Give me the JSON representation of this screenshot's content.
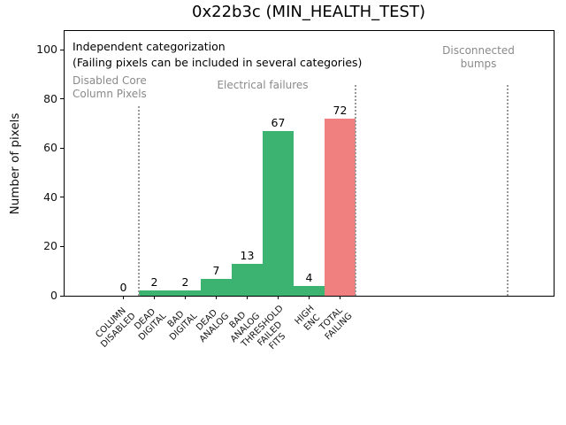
{
  "chart_data": {
    "type": "bar",
    "title": "0x22b3c (MIN_HEALTH_TEST)",
    "xlabel": "",
    "ylabel": "Number of pixels",
    "ylim": [
      0,
      108
    ],
    "yticks": [
      0,
      20,
      40,
      60,
      80,
      100
    ],
    "grid": false,
    "legend": "none",
    "categories": [
      "COLUMN\nDISABLED",
      "DEAD\nDIGITAL",
      "BAD\nDIGITAL",
      "DEAD\nANALOG",
      "BAD\nANALOG",
      "THRESHOLD\nFAILED\nFITS",
      "HIGH\nENC",
      "TOTAL\nFAILING"
    ],
    "values": [
      0,
      2,
      2,
      7,
      13,
      67,
      4,
      72
    ],
    "bar_colors": [
      "#3cb371",
      "#3cb371",
      "#3cb371",
      "#3cb371",
      "#3cb371",
      "#3cb371",
      "#3cb371",
      "#f08080"
    ],
    "value_labels": [
      "0",
      "2",
      "2",
      "7",
      "13",
      "67",
      "4",
      "72"
    ],
    "separators_x_data": [
      0.5,
      7.5,
      12.4
    ],
    "annotations": {
      "independent": "Independent categorization",
      "failing_note": "(Failing pixels can be included in several categories)",
      "disabled_core": "Disabled Core\nColumn Pixels",
      "electrical": "Electrical failures",
      "disconnected": "Disconnected\nbumps"
    },
    "colors": {
      "bar_green": "#3cb371",
      "bar_red": "#f08080",
      "annotation_gray": "#8a8a8a",
      "separator_gray": "#999999",
      "axis": "#000000"
    }
  }
}
